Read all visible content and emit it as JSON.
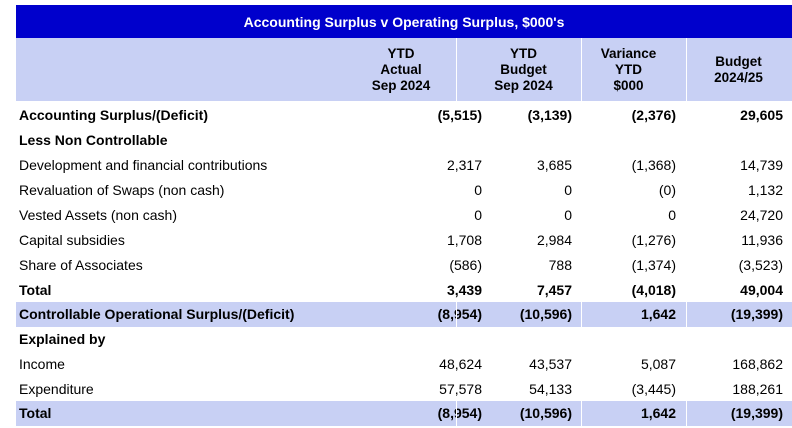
{
  "title": "Accounting Surplus v Operating Surplus, $000's",
  "headers": {
    "col1": [
      "YTD",
      "Actual",
      "Sep 2024"
    ],
    "col2": [
      "YTD",
      "Budget",
      "Sep 2024"
    ],
    "col3": [
      "Variance",
      "YTD",
      "$000"
    ],
    "col4": [
      "Budget",
      "2024/25"
    ]
  },
  "rows": [
    {
      "label": "Accounting Surplus/(Deficit)",
      "c1": "(5,515)",
      "c2": "(3,139)",
      "c3": "(2,376)",
      "c4": "29,605"
    },
    {
      "label": "Less Non Controllable",
      "c1": "",
      "c2": "",
      "c3": "",
      "c4": ""
    },
    {
      "label": "Development and financial contributions",
      "c1": "2,317",
      "c2": "3,685",
      "c3": "(1,368)",
      "c4": "14,739"
    },
    {
      "label": "Revaluation of Swaps (non cash)",
      "c1": "0",
      "c2": "0",
      "c3": "(0)",
      "c4": "1,132"
    },
    {
      "label": "Vested Assets (non cash)",
      "c1": "0",
      "c2": "0",
      "c3": "0",
      "c4": "24,720"
    },
    {
      "label": "Capital subsidies",
      "c1": "1,708",
      "c2": "2,984",
      "c3": "(1,276)",
      "c4": "11,936"
    },
    {
      "label": "Share of Associates",
      "c1": "(586)",
      "c2": "788",
      "c3": "(1,374)",
      "c4": "(3,523)"
    },
    {
      "label": "Total",
      "c1": "3,439",
      "c2": "7,457",
      "c3": "(4,018)",
      "c4": "49,004"
    },
    {
      "label": "Controllable Operational Surplus/(Deficit)",
      "c1": "(8,954)",
      "c2": "(10,596)",
      "c3": "1,642",
      "c4": "(19,399)"
    },
    {
      "label": "Explained by",
      "c1": "",
      "c2": "",
      "c3": "",
      "c4": ""
    },
    {
      "label": "Income",
      "c1": "48,624",
      "c2": "43,537",
      "c3": "5,087",
      "c4": "168,862"
    },
    {
      "label": "Expenditure",
      "c1": "57,578",
      "c2": "54,133",
      "c3": "(3,445)",
      "c4": "188,261"
    },
    {
      "label": "Total",
      "c1": "(8,954)",
      "c2": "(10,596)",
      "c3": "1,642",
      "c4": "(19,399)"
    }
  ],
  "colors": {
    "title_bg": "#0000cc",
    "header_bg": "#c8d0f4",
    "shaded_bg": "#c8d0f4"
  }
}
